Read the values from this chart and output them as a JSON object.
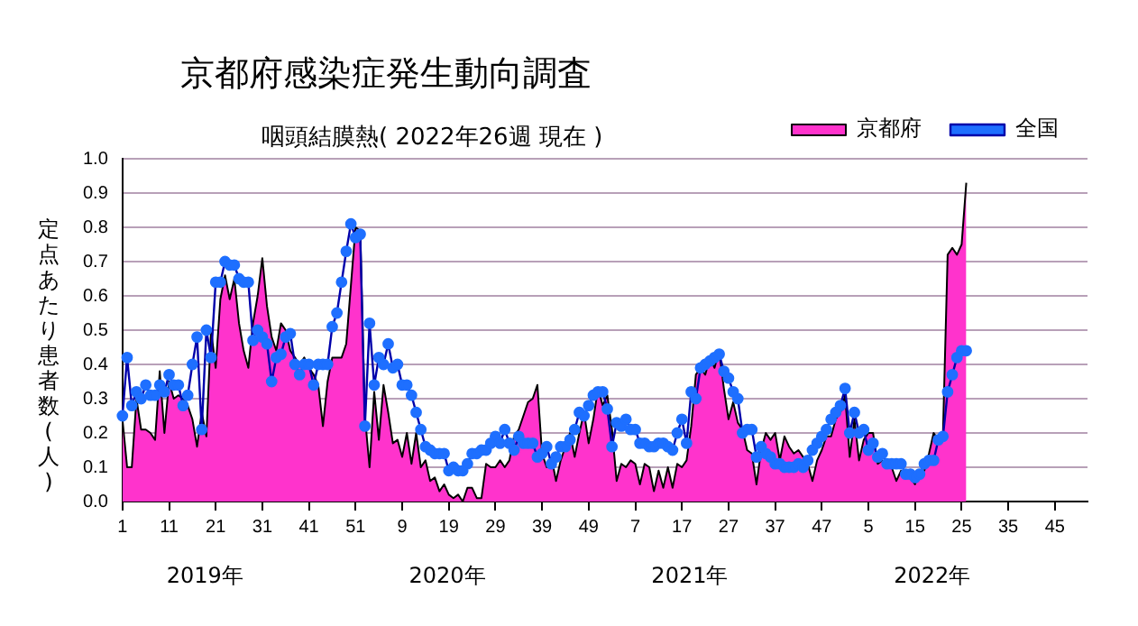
{
  "chart_data": {
    "type": "area",
    "title": "京都府感染症発生動向調査",
    "subtitle": "咽頭結膜熱( 2022年26週 現在 )",
    "ylabel": "定点あたり患者数(人)",
    "categories": [
      "1",
      null,
      null,
      null,
      null,
      null,
      null,
      null,
      null,
      null,
      "11",
      null,
      null,
      null,
      null,
      null,
      null,
      null,
      null,
      null,
      "21",
      null,
      null,
      null,
      null,
      null,
      null,
      null,
      null,
      null,
      "31",
      null,
      null,
      null,
      null,
      null,
      null,
      null,
      null,
      null,
      "41",
      null,
      null,
      null,
      null,
      null,
      null,
      null,
      null,
      null,
      "51",
      null,
      null,
      null,
      null,
      null,
      null,
      null,
      null,
      null,
      "9",
      null,
      null,
      null,
      null,
      null,
      null,
      null,
      null,
      null,
      "19",
      null,
      null,
      null,
      null,
      null,
      null,
      null,
      null,
      null,
      "29",
      null,
      null,
      null,
      null,
      null,
      null,
      null,
      null,
      null,
      "39",
      null,
      null,
      null,
      null,
      null,
      null,
      null,
      null,
      null,
      "49",
      null,
      null,
      null,
      null,
      null,
      null,
      null,
      null,
      null,
      "7",
      null,
      null,
      null,
      null,
      null,
      null,
      null,
      null,
      null,
      "17",
      null,
      null,
      null,
      null,
      null,
      null,
      null,
      null,
      null,
      "27",
      null,
      null,
      null,
      null,
      null,
      null,
      null,
      null,
      null,
      "37",
      null,
      null,
      null,
      null,
      null,
      null,
      null,
      null,
      null,
      "47",
      null,
      null,
      null,
      null,
      null,
      null,
      null,
      null,
      null,
      "5",
      null,
      null,
      null,
      null,
      null,
      null,
      null,
      null,
      null,
      "15",
      null,
      null,
      null,
      null,
      null,
      null,
      null,
      null,
      null,
      "25",
      null,
      null,
      null,
      null,
      null,
      null,
      null,
      null,
      null,
      "35",
      null,
      null,
      null,
      null,
      null,
      null,
      null,
      null,
      null,
      "45",
      null,
      null,
      null,
      null,
      null,
      null,
      null
    ],
    "series": [
      {
        "name": "京都府",
        "color": "#ff33cc",
        "values": [
          0.24,
          0.1,
          0.1,
          0.3,
          0.21,
          0.21,
          0.2,
          0.18,
          0.38,
          0.2,
          0.35,
          0.3,
          0.31,
          0.3,
          0.28,
          0.24,
          0.16,
          0.26,
          0.19,
          0.5,
          0.39,
          0.59,
          0.66,
          0.59,
          0.65,
          0.52,
          0.44,
          0.39,
          0.52,
          0.6,
          0.71,
          0.57,
          0.48,
          0.44,
          0.52,
          0.5,
          0.44,
          0.42,
          0.4,
          0.42,
          0.39,
          0.37,
          0.34,
          0.22,
          0.35,
          0.42,
          0.42,
          0.42,
          0.46,
          0.63,
          0.8,
          0.79,
          0.25,
          0.1,
          0.32,
          0.18,
          0.34,
          0.26,
          0.17,
          0.18,
          0.13,
          0.2,
          0.11,
          0.2,
          0.1,
          0.12,
          0.06,
          0.07,
          0.03,
          0.05,
          0.02,
          0.01,
          0.02,
          0,
          0.04,
          0.04,
          0.01,
          0.01,
          0.11,
          0.1,
          0.1,
          0.12,
          0.1,
          0.12,
          0.19,
          0.21,
          0.25,
          0.29,
          0.3,
          0.34,
          0.14,
          0.1,
          0.13,
          0.06,
          0.12,
          0.16,
          0.2,
          0.13,
          0.2,
          0.26,
          0.17,
          0.24,
          0.33,
          0.28,
          0.31,
          0.21,
          0.06,
          0.11,
          0.1,
          0.12,
          0.11,
          0.05,
          0.11,
          0.1,
          0.03,
          0.09,
          0.04,
          0.1,
          0.04,
          0.11,
          0.1,
          0.12,
          0.22,
          0.37,
          0.39,
          0.37,
          0.42,
          0.39,
          0.44,
          0.33,
          0.24,
          0.29,
          0.23,
          0.21,
          0.15,
          0.14,
          0.05,
          0.15,
          0.2,
          0.18,
          0.2,
          0.12,
          0.19,
          0.16,
          0.14,
          0.15,
          0.13,
          0.11,
          0.06,
          0.12,
          0.15,
          0.19,
          0.19,
          0.24,
          0.26,
          0.31,
          0.13,
          0.24,
          0.12,
          0.18,
          0.2,
          0.2,
          0.11,
          0.12,
          0.11,
          0.1,
          0.06,
          0.09,
          0.08,
          0.07,
          0.05,
          0.09,
          0.09,
          0.14,
          0.2,
          0.18,
          0.2,
          0.72,
          0.74,
          0.72,
          0.75,
          0.93,
          null,
          null,
          null,
          null,
          null,
          null,
          null,
          null,
          null,
          null,
          null,
          null,
          null,
          null,
          null,
          null,
          null,
          null,
          null,
          null,
          null,
          null,
          null,
          null,
          null,
          null
        ]
      },
      {
        "name": "全国",
        "type": "line",
        "marker": "circle",
        "color": "#1e6fff",
        "values": [
          0.25,
          0.42,
          0.28,
          0.32,
          0.3,
          0.34,
          0.31,
          0.31,
          0.34,
          0.32,
          0.37,
          0.34,
          0.34,
          0.28,
          0.31,
          0.4,
          0.48,
          0.21,
          0.5,
          0.42,
          0.64,
          0.64,
          0.7,
          0.69,
          0.69,
          0.65,
          0.64,
          0.64,
          0.47,
          0.5,
          0.48,
          0.46,
          0.35,
          0.42,
          0.43,
          0.48,
          0.49,
          0.4,
          0.37,
          0.4,
          0.4,
          0.34,
          0.4,
          0.4,
          0.4,
          0.51,
          0.55,
          0.64,
          0.73,
          0.81,
          0.77,
          0.78,
          0.22,
          0.52,
          0.34,
          0.42,
          0.4,
          0.46,
          0.39,
          0.4,
          0.34,
          0.34,
          0.31,
          0.26,
          0.21,
          0.16,
          0.15,
          0.14,
          0.14,
          0.14,
          0.09,
          0.1,
          0.09,
          0.09,
          0.11,
          0.14,
          0.14,
          0.15,
          0.15,
          0.17,
          0.19,
          0.17,
          0.21,
          0.17,
          0.15,
          0.19,
          0.17,
          0.17,
          0.17,
          0.13,
          0.14,
          0.16,
          0.11,
          0.13,
          0.16,
          0.16,
          0.18,
          0.21,
          0.26,
          0.25,
          0.28,
          0.31,
          0.32,
          0.32,
          0.27,
          0.16,
          0.23,
          0.22,
          0.24,
          0.21,
          0.21,
          0.17,
          0.17,
          0.16,
          0.16,
          0.17,
          0.17,
          0.16,
          0.15,
          0.2,
          0.24,
          0.17,
          0.32,
          0.3,
          0.39,
          0.4,
          0.41,
          0.42,
          0.43,
          0.38,
          0.36,
          0.32,
          0.3,
          0.2,
          0.21,
          0.21,
          0.13,
          0.16,
          0.14,
          0.13,
          0.11,
          0.11,
          0.1,
          0.1,
          0.1,
          0.11,
          0.1,
          0.12,
          0.15,
          0.17,
          0.19,
          0.21,
          0.24,
          0.26,
          0.28,
          0.33,
          0.2,
          0.26,
          0.2,
          0.21,
          0.15,
          0.17,
          0.13,
          0.14,
          0.11,
          0.11,
          0.11,
          0.11,
          0.08,
          0.08,
          0.07,
          0.08,
          0.11,
          0.12,
          0.12,
          0.18,
          0.19,
          0.32,
          0.37,
          0.42,
          0.44,
          0.44,
          null,
          null,
          null,
          null,
          null,
          null,
          null,
          null,
          null,
          null,
          null,
          null,
          null,
          null,
          null,
          null,
          null,
          null,
          null,
          null,
          null,
          null,
          null,
          null,
          null,
          null
        ]
      }
    ],
    "ylim": [
      0,
      1
    ],
    "yticks": [
      {
        "value": 0,
        "label": "0.0"
      },
      0.1,
      0.2,
      0.3,
      0.4,
      0.5,
      0.6,
      0.7,
      0.8,
      0.9,
      {
        "value": 1,
        "label": "1.0"
      }
    ],
    "grid": "y",
    "legend": "top right",
    "annotations": [
      "2019年",
      "2020年",
      "2021年",
      "2022年"
    ]
  }
}
